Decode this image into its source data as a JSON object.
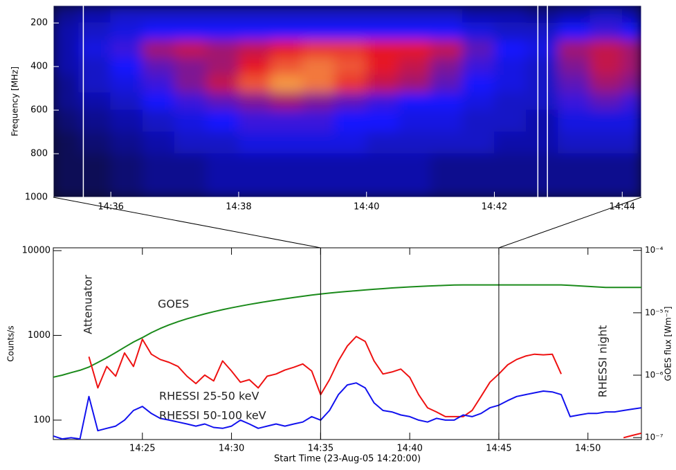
{
  "chart_data": [
    {
      "type": "heatmap",
      "ylabel": "Frequency [MHz]",
      "xlim": [
        35.1,
        44.3
      ],
      "xticks": [
        {
          "value": 36,
          "label": "14:36"
        },
        {
          "value": 38,
          "label": "14:38"
        },
        {
          "value": 40,
          "label": "14:40"
        },
        {
          "value": 42,
          "label": "14:42"
        },
        {
          "value": 44,
          "label": "14:44"
        }
      ],
      "ylim": [
        120,
        1000
      ],
      "y_reversed": true,
      "yticks": [
        200,
        400,
        600,
        800,
        1000
      ],
      "x_edges": [
        35.1,
        35.5,
        36,
        36.5,
        37,
        37.5,
        38,
        38.5,
        39,
        39.5,
        40,
        40.5,
        41,
        41.5,
        42,
        42.5,
        43,
        43.5,
        44,
        44.3
      ],
      "y_edges": [
        120,
        200,
        280,
        360,
        440,
        520,
        600,
        700,
        800,
        1000
      ],
      "z": [
        [
          0.2,
          0.25,
          0.3,
          0.3,
          0.3,
          0.3,
          0.3,
          0.3,
          0.3,
          0.3,
          0.3,
          0.3,
          0.3,
          0.25,
          0.25,
          0.2,
          0.25,
          0.3,
          0.25
        ],
        [
          0.25,
          0.3,
          0.35,
          0.4,
          0.4,
          0.4,
          0.4,
          0.4,
          0.4,
          0.4,
          0.4,
          0.4,
          0.4,
          0.35,
          0.3,
          0.3,
          0.4,
          0.45,
          0.4
        ],
        [
          0.25,
          0.35,
          0.45,
          0.6,
          0.65,
          0.6,
          0.65,
          0.7,
          0.75,
          0.75,
          0.7,
          0.7,
          0.65,
          0.5,
          0.4,
          0.35,
          0.6,
          0.65,
          0.6
        ],
        [
          0.25,
          0.3,
          0.4,
          0.5,
          0.55,
          0.6,
          0.7,
          0.8,
          0.85,
          0.8,
          0.7,
          0.65,
          0.55,
          0.45,
          0.35,
          0.3,
          0.55,
          0.65,
          0.6
        ],
        [
          0.2,
          0.3,
          0.35,
          0.45,
          0.55,
          0.65,
          0.8,
          0.9,
          0.85,
          0.75,
          0.65,
          0.6,
          0.5,
          0.4,
          0.35,
          0.3,
          0.5,
          0.6,
          0.55
        ],
        [
          0.2,
          0.25,
          0.3,
          0.4,
          0.45,
          0.5,
          0.55,
          0.6,
          0.55,
          0.5,
          0.45,
          0.4,
          0.4,
          0.35,
          0.3,
          0.3,
          0.45,
          0.5,
          0.45
        ],
        [
          0.15,
          0.2,
          0.25,
          0.3,
          0.35,
          0.4,
          0.45,
          0.45,
          0.45,
          0.4,
          0.4,
          0.35,
          0.35,
          0.3,
          0.3,
          0.25,
          0.35,
          0.35,
          0.35
        ],
        [
          0.1,
          0.15,
          0.2,
          0.25,
          0.3,
          0.3,
          0.35,
          0.35,
          0.35,
          0.35,
          0.3,
          0.3,
          0.3,
          0.3,
          0.25,
          0.25,
          0.3,
          0.3,
          0.3
        ],
        [
          0.1,
          0.1,
          0.15,
          0.2,
          0.2,
          0.25,
          0.25,
          0.25,
          0.25,
          0.25,
          0.25,
          0.25,
          0.2,
          0.2,
          0.2,
          0.2,
          0.2,
          0.2,
          0.2
        ]
      ],
      "gaps": [
        35.57,
        42.68,
        42.83
      ]
    },
    {
      "type": "line",
      "xlabel": "Start Time (23-Aug-05 14:20:00)",
      "ylabel": "Counts/s",
      "y2label": "GOES flux [Wm⁻²]",
      "xlim": [
        20,
        53
      ],
      "xticks": [
        {
          "value": 25,
          "label": "14:25"
        },
        {
          "value": 30,
          "label": "14:30"
        },
        {
          "value": 35,
          "label": "14:35"
        },
        {
          "value": 40,
          "label": "14:40"
        },
        {
          "value": 45,
          "label": "14:45"
        },
        {
          "value": 50,
          "label": "14:50"
        }
      ],
      "ylim": [
        59,
        10800
      ],
      "ylog": true,
      "yticks": [
        100,
        1000,
        10000
      ],
      "y2lim": [
        9.3e-08,
        0.00011
      ],
      "y2log": true,
      "y2ticks": [
        {
          "value": 1e-07,
          "label": "10⁻⁷"
        },
        {
          "value": 1e-06,
          "label": "10⁻⁶"
        },
        {
          "value": 1e-05,
          "label": "10⁻⁵"
        },
        {
          "value": 0.0001,
          "label": "10⁻⁴"
        }
      ],
      "markers": [
        35,
        45
      ],
      "annotations": [
        "Attenuator",
        "RHESSI night"
      ],
      "x": [
        20,
        20.5,
        21,
        21.5,
        22,
        22.5,
        23,
        23.5,
        24,
        24.5,
        25,
        25.5,
        26,
        26.5,
        27,
        27.5,
        28,
        28.5,
        29,
        29.5,
        30,
        30.5,
        31,
        31.5,
        32,
        32.5,
        33,
        33.5,
        34,
        34.5,
        35,
        35.5,
        36,
        36.5,
        37,
        37.5,
        38,
        38.5,
        39,
        39.5,
        40,
        40.5,
        41,
        41.5,
        42,
        42.5,
        43,
        43.5,
        44,
        44.5,
        45,
        45.5,
        46,
        46.5,
        47,
        47.5,
        48,
        48.5,
        49,
        49.5,
        50,
        50.5,
        51,
        51.5,
        52,
        52.5,
        53
      ],
      "series": [
        {
          "name": "GOES",
          "color": "#1a8a1a",
          "axis": "y2",
          "values": [
            9.3e-07,
            1e-06,
            1.1e-06,
            1.2e-06,
            1.35e-06,
            1.6e-06,
            1.9e-06,
            2.3e-06,
            2.8e-06,
            3.4e-06,
            4e-06,
            4.8e-06,
            5.6e-06,
            6.4e-06,
            7.2e-06,
            8e-06,
            8.8e-06,
            9.6e-06,
            1.04e-05,
            1.12e-05,
            1.2e-05,
            1.28e-05,
            1.36e-05,
            1.44e-05,
            1.52e-05,
            1.6e-05,
            1.68e-05,
            1.76e-05,
            1.84e-05,
            1.92e-05,
            2e-05,
            2.07e-05,
            2.14e-05,
            2.2e-05,
            2.26e-05,
            2.32e-05,
            2.38e-05,
            2.44e-05,
            2.5e-05,
            2.55e-05,
            2.6e-05,
            2.64e-05,
            2.68e-05,
            2.72e-05,
            2.75e-05,
            2.78e-05,
            2.8e-05,
            2.8e-05,
            2.8e-05,
            2.8e-05,
            2.8e-05,
            2.8e-05,
            2.8e-05,
            2.8e-05,
            2.8e-05,
            2.8e-05,
            2.8e-05,
            2.8e-05,
            2.75e-05,
            2.7e-05,
            2.65e-05,
            2.6e-05,
            2.55e-05,
            2.55e-05,
            2.55e-05,
            2.55e-05,
            2.55e-05
          ]
        },
        {
          "name": "RHESSI 25-50 keV",
          "color": "#ee1111",
          "values": [
            null,
            null,
            null,
            null,
            560,
            240,
            430,
            330,
            620,
            430,
            900,
            600,
            520,
            480,
            430,
            330,
            270,
            340,
            290,
            500,
            380,
            280,
            300,
            240,
            330,
            350,
            390,
            420,
            460,
            380,
            200,
            300,
            500,
            750,
            970,
            850,
            500,
            350,
            370,
            400,
            320,
            200,
            140,
            125,
            110,
            110,
            110,
            130,
            190,
            280,
            350,
            450,
            520,
            570,
            600,
            590,
            600,
            350,
            null,
            null,
            null,
            null,
            null,
            null,
            62,
            66,
            70
          ]
        },
        {
          "name": "RHESSI 50-100 keV",
          "color": "#1111ee",
          "values": [
            65,
            60,
            62,
            60,
            190,
            75,
            80,
            85,
            100,
            130,
            145,
            120,
            105,
            100,
            95,
            90,
            85,
            90,
            82,
            80,
            85,
            100,
            90,
            80,
            85,
            90,
            85,
            90,
            95,
            110,
            100,
            130,
            200,
            260,
            275,
            240,
            160,
            130,
            125,
            115,
            110,
            100,
            95,
            105,
            100,
            100,
            115,
            110,
            120,
            140,
            150,
            170,
            190,
            200,
            210,
            220,
            215,
            200,
            110,
            115,
            120,
            120,
            125,
            125,
            130,
            135,
            140
          ]
        }
      ]
    }
  ]
}
